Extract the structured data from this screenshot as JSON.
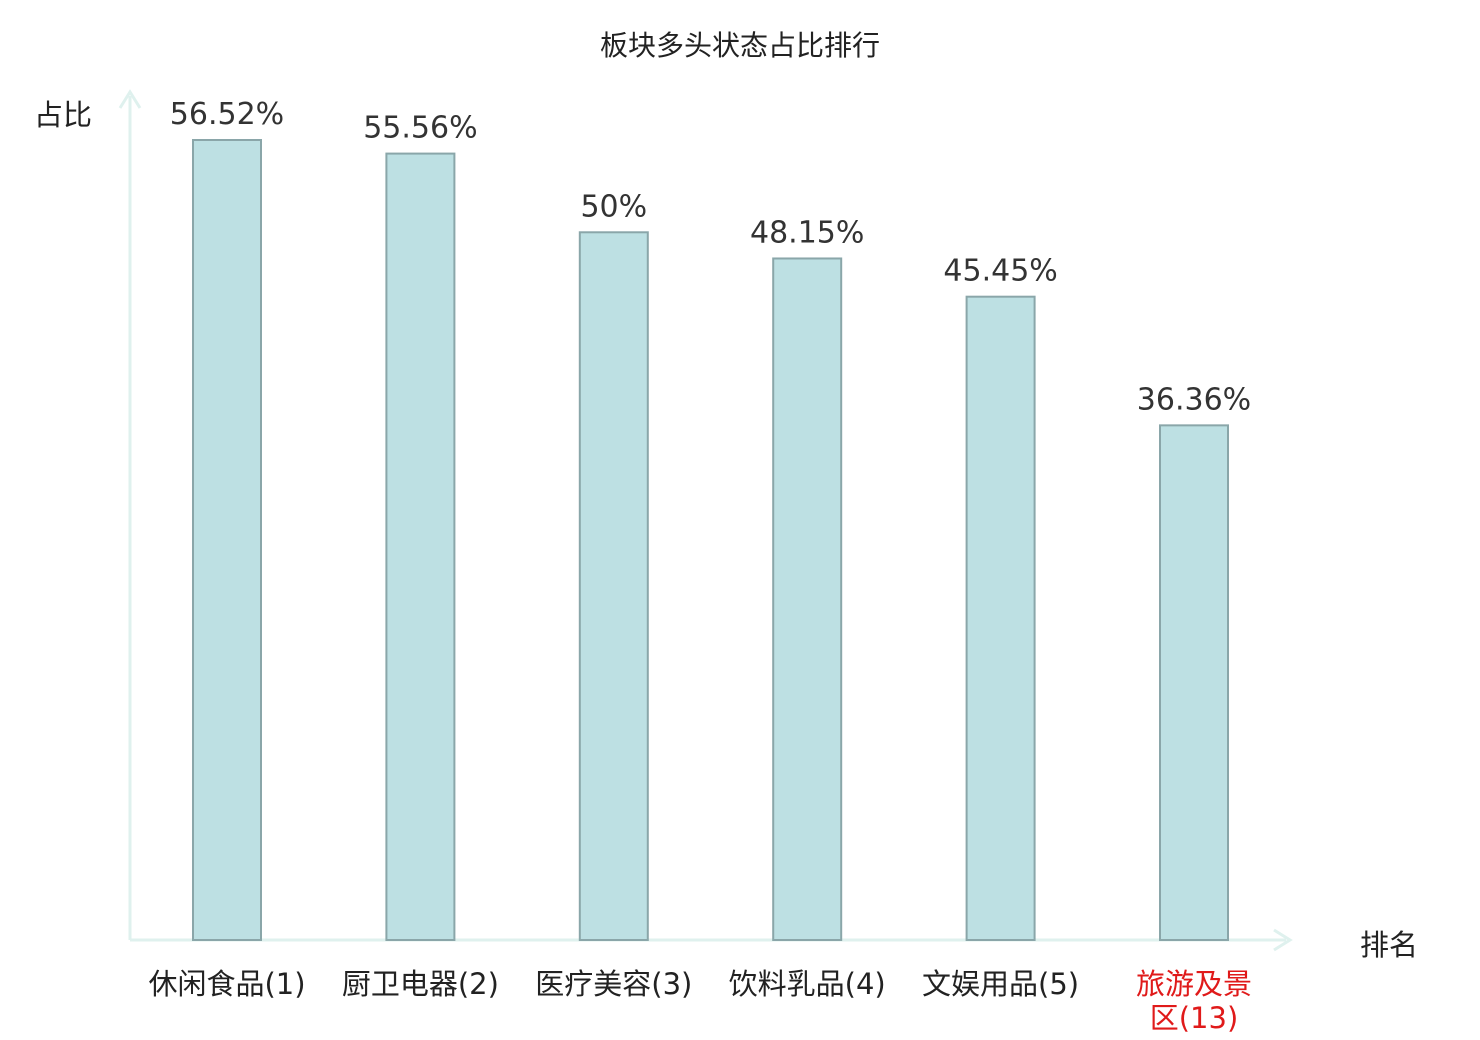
{
  "chart_data": {
    "type": "bar",
    "title": "板块多头状态占比排行",
    "ylabel": "占比",
    "xlabel": "排名",
    "categories": [
      "休闲食品(1)",
      "厨卫电器(2)",
      "医疗美容(3)",
      "饮料乳品(4)",
      "文娱用品(5)",
      "旅游及景区(13)"
    ],
    "category_lines": [
      [
        "休闲食品(1)"
      ],
      [
        "厨卫电器(2)"
      ],
      [
        "医疗美容(3)"
      ],
      [
        "饮料乳品(4)"
      ],
      [
        "文娱用品(5)"
      ],
      [
        "旅游及景",
        "区(13)"
      ]
    ],
    "values": [
      56.52,
      55.56,
      50,
      48.15,
      45.45,
      36.36
    ],
    "value_labels": [
      "56.52%",
      "55.56%",
      "50%",
      "48.15%",
      "45.45%",
      "36.36%"
    ],
    "highlight_index": 5,
    "ylim": [
      0,
      60
    ],
    "grid": false,
    "legend": "none"
  },
  "colors": {
    "bar_fill": "#bde0e3",
    "bar_stroke": "#8aa6a9",
    "axis": "#dff1ee",
    "text": "#222222",
    "value_label": "#333333",
    "highlight_label": "#e01a1a"
  }
}
